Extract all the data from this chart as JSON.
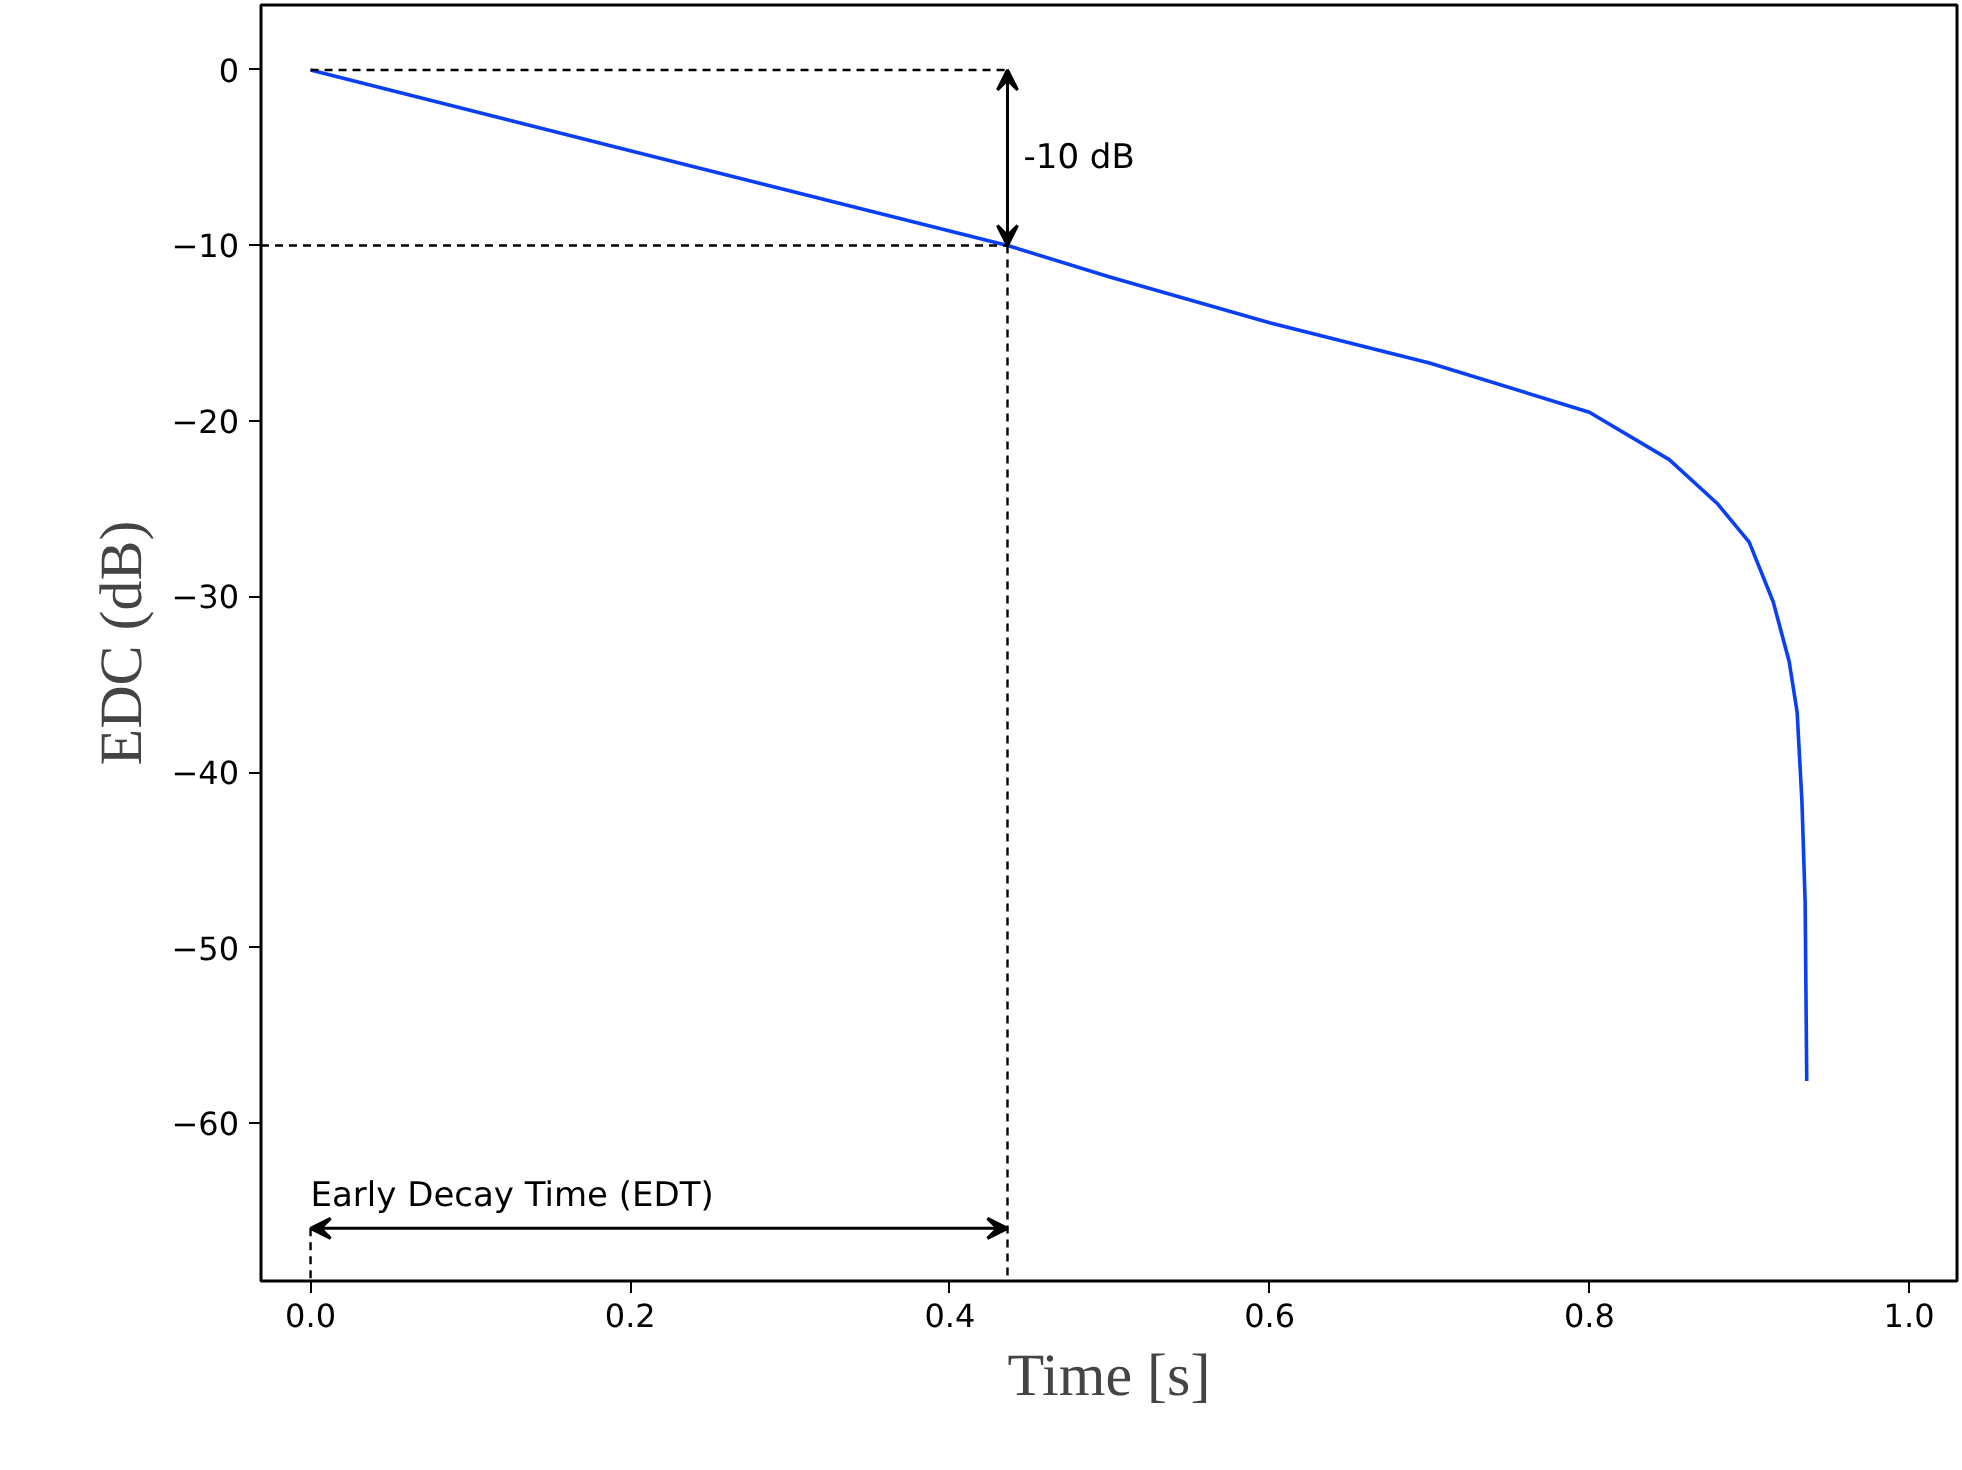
{
  "chart_data": {
    "type": "line",
    "xlabel": "Time [s]",
    "ylabel": "EDC (dB)",
    "xlim": [
      -0.031,
      1.03
    ],
    "ylim": [
      -69.0,
      3.7
    ],
    "xticks": [
      {
        "value": 0,
        "label": "0.0"
      },
      {
        "value": 0.2,
        "label": "0.2"
      },
      {
        "value": 0.4,
        "label": "0.4"
      },
      {
        "value": 0.6,
        "label": "0.6"
      },
      {
        "value": 0.8,
        "label": "0.8"
      },
      {
        "value": 1.0,
        "label": "1.0"
      }
    ],
    "yticks": [
      0,
      {
        "value": -10,
        "label": "−10"
      },
      {
        "value": -20,
        "label": "−20"
      },
      {
        "value": -30,
        "label": "−30"
      },
      {
        "value": -40,
        "label": "−40"
      },
      {
        "value": -50,
        "label": "−50"
      },
      {
        "value": -60,
        "label": "−60"
      }
    ],
    "grid": false,
    "series": [
      {
        "color": "#0a3ff5",
        "line_style": "solid",
        "x": [
          0,
          0.2,
          0.436,
          0.5,
          0.6,
          0.7,
          0.8,
          0.85,
          0.88,
          0.9,
          0.915,
          0.925,
          0.93,
          0.933,
          0.935,
          0.936
        ],
        "values": [
          0,
          -4.6,
          -10,
          -11.8,
          -14.4,
          -16.7,
          -19.5,
          -22.2,
          -24.7,
          -26.9,
          -30.3,
          -33.7,
          -36.6,
          -41.7,
          -47.4,
          -57.6
        ]
      },
      {
        "color": "#000000",
        "line_style": "dashed",
        "x": [
          0,
          0.436
        ],
        "values": [
          0,
          0
        ]
      },
      {
        "color": "#000000",
        "line_style": "dashed",
        "x": [
          -0.031,
          0.436
        ],
        "values": [
          -10,
          -10
        ]
      },
      {
        "color": "#000000",
        "line_style": "dashed",
        "x": [
          0.436,
          0.436
        ],
        "values": [
          -10,
          -69.0
        ]
      },
      {
        "color": "#000000",
        "line_style": "dashed",
        "x": [
          0,
          0
        ],
        "values": [
          -66,
          -69.0
        ]
      }
    ],
    "annotations": [
      "-10 dB",
      "Early Decay Time (EDT)"
    ]
  }
}
